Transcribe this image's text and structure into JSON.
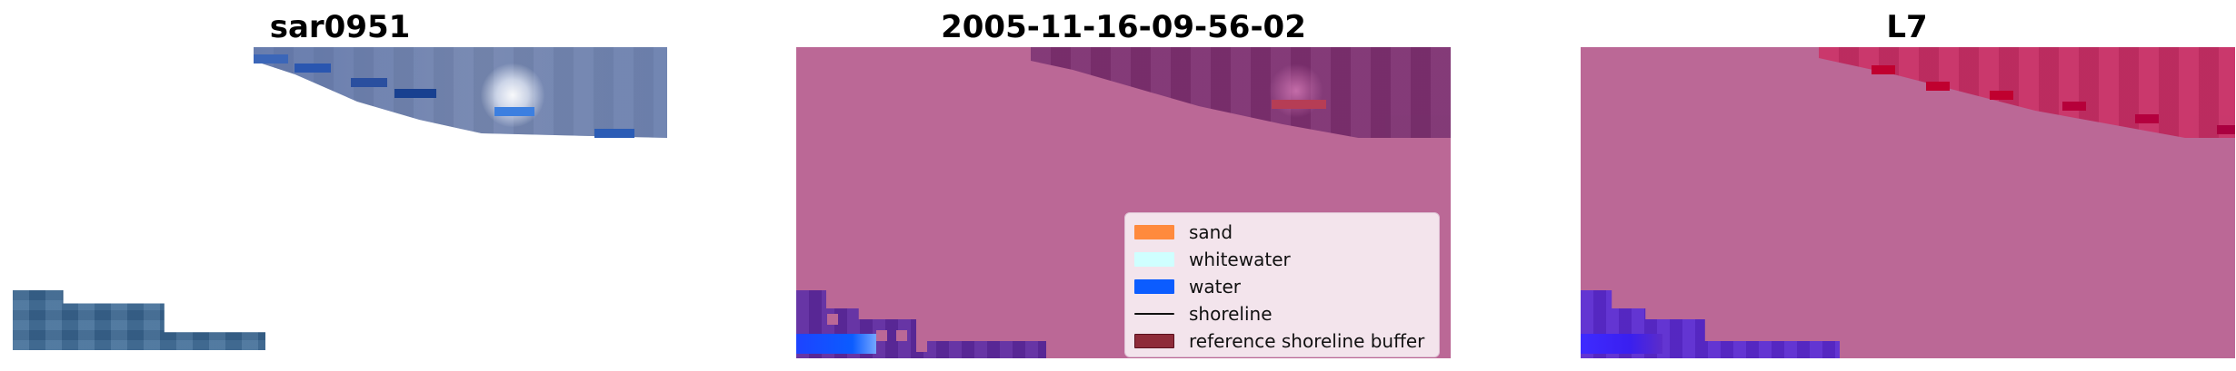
{
  "titles": {
    "left": "sar0951",
    "center": "2005-11-16-09-56-02",
    "right": "L7"
  },
  "legend": {
    "items": [
      {
        "label": "sand",
        "type": "patch",
        "color": "#FF8A3D",
        "border": "#FF8A3D"
      },
      {
        "label": "whitewater",
        "type": "patch",
        "color": "#CFFFFF",
        "border": "#CFFFFF"
      },
      {
        "label": "water",
        "type": "patch",
        "color": "#0B5CFF",
        "border": "#0B5CFF"
      },
      {
        "label": "shoreline",
        "type": "line",
        "color": "#111111"
      },
      {
        "label": "reference shoreline buffer",
        "type": "patch",
        "color": "#8E2B39",
        "border": "#5A0F1D"
      }
    ]
  },
  "colors": {
    "overlay_background": "#BB6896"
  }
}
